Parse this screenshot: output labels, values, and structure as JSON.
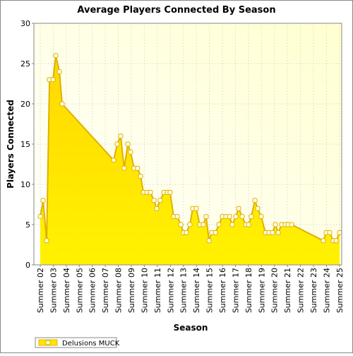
{
  "chart_data": {
    "type": "area",
    "title": "Average Players Connected By Season",
    "x_label": "Season",
    "y_label": "Players Connected",
    "xlim": [
      1.51,
      25.17
    ],
    "ylim": [
      0,
      30
    ],
    "yticks": [
      0,
      5,
      10,
      15,
      20,
      25,
      30
    ],
    "xticks": [
      {
        "value": 2,
        "label": "Summer 02"
      },
      {
        "value": 3,
        "label": "Summer 03"
      },
      {
        "value": 4,
        "label": "Summer 04"
      },
      {
        "value": 5,
        "label": "Summer 05"
      },
      {
        "value": 6,
        "label": "Summer 06"
      },
      {
        "value": 7,
        "label": "Summer 07"
      },
      {
        "value": 8,
        "label": "Summer 08"
      },
      {
        "value": 9,
        "label": "Summer 09"
      },
      {
        "value": 10,
        "label": "Summer 10"
      },
      {
        "value": 11,
        "label": "Summer 11"
      },
      {
        "value": 12,
        "label": "Summer 12"
      },
      {
        "value": 13,
        "label": "Summer 13"
      },
      {
        "value": 14,
        "label": "Summer 14"
      },
      {
        "value": 15,
        "label": "Summer 15"
      },
      {
        "value": 16,
        "label": "Summer 16"
      },
      {
        "value": 17,
        "label": "Summer 17"
      },
      {
        "value": 18,
        "label": "Summer 18"
      },
      {
        "value": 19,
        "label": "Summer 19"
      },
      {
        "value": 20,
        "label": "Summer 20"
      },
      {
        "value": 21,
        "label": "Summer 21"
      },
      {
        "value": 22,
        "label": "Summer 22"
      },
      {
        "value": 23,
        "label": "Summer 23"
      },
      {
        "value": 24,
        "label": "Summer 24"
      },
      {
        "value": 25,
        "label": "Summer 25"
      }
    ],
    "grid": true,
    "legend_position": "bottom-left",
    "series": [
      {
        "name": "Delusions MUCK",
        "color": "#ffe600",
        "line_color": "#e0b000",
        "x": [
          2.0,
          2.22,
          2.49,
          2.71,
          2.98,
          3.19,
          3.47,
          3.68,
          7.64,
          7.91,
          8.18,
          8.45,
          8.73,
          8.94,
          9.21,
          9.48,
          9.71,
          9.93,
          10.2,
          10.47,
          10.74,
          10.95,
          11.22,
          11.5,
          11.77,
          11.98,
          12.25,
          12.53,
          12.8,
          13.01,
          13.23,
          13.5,
          13.72,
          13.99,
          14.26,
          14.53,
          14.75,
          14.97,
          15.18,
          15.46,
          15.73,
          16.0,
          16.27,
          16.54,
          16.76,
          17.03,
          17.25,
          17.52,
          17.79,
          18.01,
          18.22,
          18.5,
          18.71,
          18.98,
          19.31,
          19.58,
          19.85,
          20.07,
          20.29,
          20.56,
          20.83,
          21.05,
          21.32,
          23.76,
          23.98,
          24.25,
          24.52,
          24.74,
          25.01
        ],
        "values": [
          6,
          8,
          3,
          23,
          23,
          26,
          24,
          20,
          13,
          15,
          16,
          12,
          15,
          14,
          12,
          12,
          11,
          9,
          9,
          9,
          8,
          7,
          8,
          9,
          9,
          9,
          6,
          6,
          5,
          4,
          4,
          5,
          7,
          7,
          5,
          5,
          6,
          3,
          4,
          4,
          5,
          6,
          6,
          6,
          5,
          6,
          7,
          6,
          5,
          5,
          6,
          8,
          7,
          6,
          4,
          4,
          4,
          5,
          4,
          5,
          5,
          5,
          5,
          3,
          4,
          4,
          3,
          3,
          4
        ]
      }
    ]
  }
}
